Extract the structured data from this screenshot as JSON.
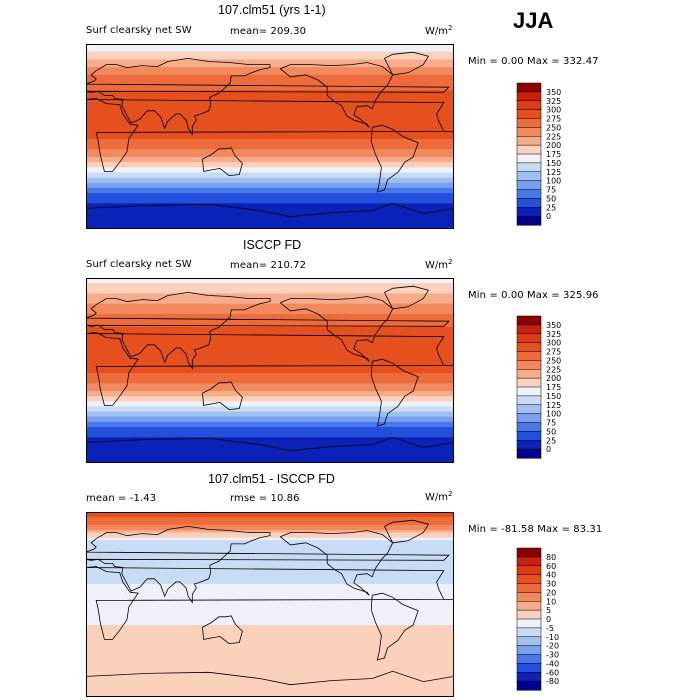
{
  "season": "JJA",
  "panels": [
    {
      "title": "107.clm51 (yrs 1-1)",
      "variable": "Surf clearsky net SW",
      "stat1": "mean= 209.30",
      "stat2": "",
      "unit": "W/m",
      "unit_sup": "2",
      "range": "Min =    0.00 Max = 332.47"
    },
    {
      "title": "ISCCP FD",
      "variable": "Surf clearsky net SW",
      "stat1": "mean= 210.72",
      "stat2": "",
      "unit": "W/m",
      "unit_sup": "2",
      "range": "Min =    0.00 Max = 325.96"
    },
    {
      "title": "107.clm51 - ISCCP FD",
      "variable": "",
      "stat1": "mean =   -1.43",
      "stat2": "rmse =  10.86",
      "unit": "W/m",
      "unit_sup": "2",
      "range": "Min = -81.58 Max =  83.31"
    }
  ],
  "chart_data": [
    {
      "type": "heatmap",
      "title": "107.clm51 (yrs 1-1)",
      "subtitle": "Surf clearsky net SW",
      "units": "W/m2",
      "mean": 209.3,
      "min": 0.0,
      "max": 332.47,
      "colorbar_levels": [
        "350",
        "325",
        "300",
        "275",
        "250",
        "225",
        "200",
        "175",
        "150",
        "125",
        "100",
        "75",
        "50",
        "25",
        "0"
      ],
      "colorbar_colors": [
        "#8c0000",
        "#c8200c",
        "#dc3c14",
        "#e6501e",
        "#ee6c3c",
        "#f28a5e",
        "#f7ad8c",
        "#fbd1bc",
        "#eef0fa",
        "#c8dcf6",
        "#a0c0f2",
        "#78a0ee",
        "#4a78e8",
        "#2250dc",
        "#0a22b8",
        "#00008c"
      ],
      "zonal_profile": {
        "lat": [
          90,
          60,
          40,
          20,
          0,
          -20,
          -40,
          -60,
          -90
        ],
        "value": [
          150,
          250,
          285,
          300,
          280,
          230,
          130,
          30,
          0
        ]
      }
    },
    {
      "type": "heatmap",
      "title": "ISCCP FD",
      "subtitle": "Surf clearsky net SW",
      "units": "W/m2",
      "mean": 210.72,
      "min": 0.0,
      "max": 325.96,
      "colorbar_levels": [
        "350",
        "325",
        "300",
        "275",
        "250",
        "225",
        "200",
        "175",
        "150",
        "125",
        "100",
        "75",
        "50",
        "25",
        "0"
      ],
      "colorbar_colors": [
        "#8c0000",
        "#c8200c",
        "#dc3c14",
        "#e6501e",
        "#ee6c3c",
        "#f28a5e",
        "#f7ad8c",
        "#fbd1bc",
        "#eef0fa",
        "#c8dcf6",
        "#a0c0f2",
        "#78a0ee",
        "#4a78e8",
        "#2250dc",
        "#0a22b8",
        "#00008c"
      ],
      "zonal_profile": {
        "lat": [
          90,
          60,
          40,
          20,
          0,
          -20,
          -40,
          -60,
          -90
        ],
        "value": [
          160,
          240,
          280,
          300,
          280,
          230,
          130,
          30,
          0
        ]
      }
    },
    {
      "type": "heatmap",
      "title": "107.clm51 - ISCCP FD",
      "units": "W/m2",
      "mean": -1.43,
      "rmse": 10.86,
      "min": -81.58,
      "max": 83.31,
      "colorbar_levels": [
        "80",
        "60",
        "40",
        "30",
        "20",
        "10",
        "5",
        "0",
        "-5",
        "-10",
        "-20",
        "-30",
        "-40",
        "-60",
        "-80"
      ],
      "colorbar_colors": [
        "#8c0000",
        "#c8200c",
        "#dc3c14",
        "#e6501e",
        "#ee6c3c",
        "#f28a5e",
        "#f7ad8c",
        "#fbd1bc",
        "#eef0fa",
        "#c8dcf6",
        "#a0c0f2",
        "#78a0ee",
        "#4a78e8",
        "#2250dc",
        "#0a22b8",
        "#00008c"
      ],
      "zonal_profile": {
        "lat": [
          90,
          60,
          40,
          20,
          0,
          -20,
          -40,
          -60,
          -90
        ],
        "value": [
          40,
          -10,
          -10,
          -5,
          -5,
          0,
          3,
          0,
          0
        ]
      }
    }
  ]
}
